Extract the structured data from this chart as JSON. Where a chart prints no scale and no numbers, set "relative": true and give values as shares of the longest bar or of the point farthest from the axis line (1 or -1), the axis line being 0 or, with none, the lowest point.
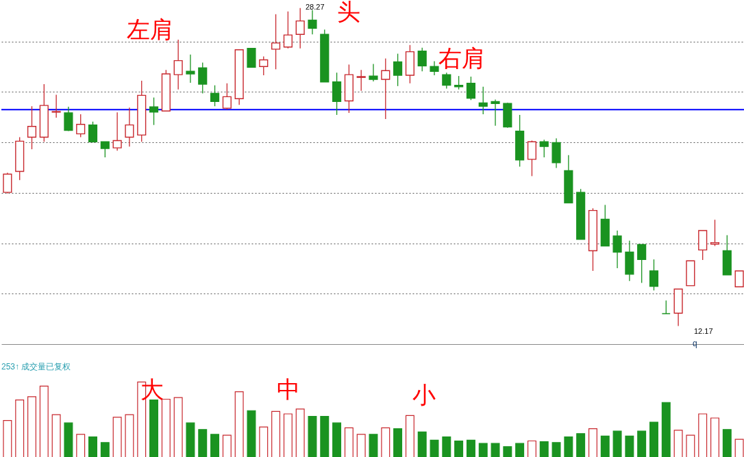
{
  "chart_data": [
    {
      "type": "candlestick",
      "categories": [
        null,
        null,
        null,
        null,
        null,
        null,
        null,
        null,
        null,
        null,
        null,
        null,
        null,
        null,
        null,
        null,
        null,
        null,
        null,
        null,
        null,
        null,
        null,
        null,
        null,
        null,
        null,
        null,
        null,
        null,
        null,
        null,
        null,
        null,
        null,
        null,
        null,
        null,
        null,
        null,
        null,
        null,
        null,
        null,
        null,
        null,
        null,
        null,
        null,
        null,
        null,
        null,
        null,
        null,
        null,
        null,
        null,
        null,
        null,
        null,
        null
      ],
      "ohlc": [
        [
          18.94,
          19.93,
          18.88,
          19.86
        ],
        [
          20.0,
          21.73,
          19.56,
          21.53
        ],
        [
          21.73,
          23.3,
          21.12,
          22.28
        ],
        [
          21.73,
          24.42,
          21.5,
          23.34
        ],
        [
          23.0,
          23.88,
          22.72,
          23.03
        ],
        [
          22.96,
          23.27,
          22.04,
          22.08
        ],
        [
          21.9,
          22.89,
          21.73,
          22.38
        ],
        [
          22.35,
          22.52,
          21.46,
          21.5
        ],
        [
          21.5,
          21.5,
          20.71,
          21.16
        ],
        [
          21.19,
          22.99,
          21.05,
          21.56
        ],
        [
          21.73,
          23.23,
          21.26,
          22.35
        ],
        [
          21.84,
          24.59,
          21.5,
          23.85
        ],
        [
          23.27,
          23.74,
          22.35,
          23.0
        ],
        [
          23.06,
          25.14,
          23.06,
          24.94
        ],
        [
          24.9,
          26.67,
          24.15,
          25.61
        ],
        [
          25.07,
          25.92,
          24.49,
          24.94
        ],
        [
          25.24,
          25.51,
          23.95,
          24.42
        ],
        [
          23.95,
          24.36,
          23.3,
          23.54
        ],
        [
          23.2,
          24.46,
          23.13,
          23.78
        ],
        [
          23.68,
          26.16,
          23.37,
          26.16
        ],
        [
          26.23,
          26.23,
          25.27,
          25.27
        ],
        [
          25.31,
          25.82,
          24.87,
          25.65
        ],
        [
          26.19,
          27.96,
          25.17,
          26.5
        ],
        [
          26.3,
          28.1,
          26.23,
          26.91
        ],
        [
          26.94,
          28.27,
          26.23,
          27.62
        ],
        [
          27.66,
          28.17,
          26.94,
          27.25
        ],
        [
          26.94,
          27.18,
          24.53,
          24.53
        ],
        [
          24.53,
          25.0,
          22.86,
          23.54
        ],
        [
          23.57,
          25.41,
          22.96,
          24.9
        ],
        [
          24.76,
          25.14,
          24.08,
          24.8
        ],
        [
          24.83,
          25.44,
          24.56,
          24.66
        ],
        [
          24.66,
          25.72,
          22.65,
          25.1
        ],
        [
          25.55,
          25.96,
          24.32,
          24.87
        ],
        [
          24.87,
          26.4,
          24.46,
          26.06
        ],
        [
          26.09,
          26.26,
          25.07,
          25.34
        ],
        [
          25.31,
          25.58,
          24.87,
          25.07
        ],
        [
          24.9,
          25.0,
          24.19,
          24.36
        ],
        [
          24.36,
          24.83,
          24.15,
          24.29
        ],
        [
          24.46,
          24.8,
          23.61,
          23.71
        ],
        [
          23.47,
          24.29,
          22.89,
          23.3
        ],
        [
          23.54,
          23.64,
          22.31,
          23.44
        ],
        [
          23.44,
          23.47,
          22.21,
          22.25
        ],
        [
          22.04,
          22.86,
          20.24,
          20.58
        ],
        [
          20.61,
          21.56,
          19.76,
          21.5
        ],
        [
          21.5,
          21.6,
          20.71,
          21.26
        ],
        [
          21.46,
          21.67,
          20.17,
          20.44
        ],
        [
          20.04,
          20.82,
          18.4,
          18.4
        ],
        [
          18.94,
          19.11,
          16.56,
          16.56
        ],
        [
          15.98,
          18.13,
          14.96,
          18.02
        ],
        [
          17.58,
          18.3,
          16.22,
          16.22
        ],
        [
          16.73,
          17.0,
          15.1,
          15.91
        ],
        [
          15.91,
          16.49,
          14.45,
          14.79
        ],
        [
          16.29,
          16.29,
          14.35,
          15.54
        ],
        [
          14.96,
          15.54,
          13.97,
          14.18
        ],
        [
          12.79,
          13.46,
          12.79,
          12.79
        ],
        [
          12.82,
          14.04,
          12.17,
          14.04
        ],
        [
          14.21,
          15.47,
          14.21,
          15.47
        ],
        [
          16.02,
          17.0,
          15.51,
          17.0
        ],
        [
          16.32,
          17.55,
          16.22,
          16.39
        ],
        [
          15.98,
          16.77,
          14.76,
          14.76
        ],
        [
          14.15,
          14.96,
          14.15,
          14.96
        ]
      ],
      "colors": [
        "#c8282e",
        "#c8282e",
        "#c8282e",
        "#c8282e",
        "#c8282e",
        "#1a9320",
        "#c8282e",
        "#1a9320",
        "#1a9320",
        "#c8282e",
        "#c8282e",
        "#c8282e",
        "#1a9320",
        "#c8282e",
        "#c8282e",
        "#1a9320",
        "#1a9320",
        "#1a9320",
        "#c8282e",
        "#c8282e",
        "#1a9320",
        "#c8282e",
        "#c8282e",
        "#c8282e",
        "#c8282e",
        "#1a9320",
        "#1a9320",
        "#1a9320",
        "#c8282e",
        "#c8282e",
        "#1a9320",
        "#c8282e",
        "#1a9320",
        "#c8282e",
        "#1a9320",
        "#1a9320",
        "#1a9320",
        "#1a9320",
        "#1a9320",
        "#1a9320",
        "#1a9320",
        "#1a9320",
        "#1a9320",
        "#c8282e",
        "#1a9320",
        "#1a9320",
        "#1a9320",
        "#1a9320",
        "#c8282e",
        "#1a9320",
        "#1a9320",
        "#1a9320",
        "#1a9320",
        "#1a9320",
        "#1a9320",
        "#c8282e",
        "#c8282e",
        "#c8282e",
        "#c8282e",
        "#1a9320",
        "#c8282e"
      ],
      "ylim": [
        11.25,
        28.68
      ],
      "yticks": [
        {
          "value": 13.81,
          "label": null
        },
        {
          "value": 16.36,
          "label": null
        },
        {
          "value": 18.91,
          "label": null
        },
        {
          "value": 21.46,
          "label": null
        },
        {
          "value": 24.02,
          "label": null
        },
        {
          "value": 26.57,
          "label": null
        }
      ],
      "grid": "y",
      "ref_lines": [
        {
          "axis": "y",
          "value": 23.13,
          "color": "#0000ff"
        }
      ],
      "annotations": [
        "左肩",
        "头",
        "右肩",
        "28.27",
        "12.17",
        "q"
      ]
    },
    {
      "type": "bar",
      "categories": [
        null,
        null,
        null,
        null,
        null,
        null,
        null,
        null,
        null,
        null,
        null,
        null,
        null,
        null,
        null,
        null,
        null,
        null,
        null,
        null,
        null,
        null,
        null,
        null,
        null,
        null,
        null,
        null,
        null,
        null,
        null,
        null,
        null,
        null,
        null,
        null,
        null,
        null,
        null,
        null,
        null,
        null,
        null,
        null,
        null,
        null,
        null,
        null,
        null,
        null,
        null,
        null,
        null,
        null,
        null,
        null,
        null,
        null,
        null,
        null,
        null
      ],
      "values": [
        0.53,
        0.78,
        0.82,
        0.95,
        0.6,
        0.5,
        0.36,
        0.33,
        0.26,
        0.57,
        0.6,
        1,
        0.78,
        0.79,
        0.81,
        0.5,
        0.42,
        0.36,
        0.35,
        0.88,
        0.65,
        0.45,
        0.64,
        0.61,
        0.67,
        0.58,
        0.58,
        0.5,
        0.44,
        0.36,
        0.36,
        0.44,
        0.43,
        0.59,
        0.39,
        0.29,
        0.33,
        0.28,
        0.29,
        0.25,
        0.25,
        0.21,
        0.25,
        0.28,
        0.27,
        0.26,
        0.33,
        0.37,
        0.43,
        0.34,
        0.4,
        0.34,
        0.4,
        0.51,
        0.75,
        0.41,
        0.35,
        0.61,
        0.56,
        0.42,
        0.3
      ],
      "colors": [
        "#c8282e",
        "#c8282e",
        "#c8282e",
        "#c8282e",
        "#c8282e",
        "#1a9320",
        "#c8282e",
        "#1a9320",
        "#1a9320",
        "#c8282e",
        "#c8282e",
        "#c8282e",
        "#1a9320",
        "#c8282e",
        "#c8282e",
        "#1a9320",
        "#1a9320",
        "#1a9320",
        "#c8282e",
        "#c8282e",
        "#1a9320",
        "#c8282e",
        "#c8282e",
        "#c8282e",
        "#c8282e",
        "#1a9320",
        "#1a9320",
        "#1a9320",
        "#c8282e",
        "#c8282e",
        "#1a9320",
        "#c8282e",
        "#1a9320",
        "#c8282e",
        "#1a9320",
        "#1a9320",
        "#1a9320",
        "#1a9320",
        "#1a9320",
        "#1a9320",
        "#1a9320",
        "#1a9320",
        "#1a9320",
        "#c8282e",
        "#1a9320",
        "#1a9320",
        "#1a9320",
        "#1a9320",
        "#c8282e",
        "#1a9320",
        "#1a9320",
        "#1a9320",
        "#1a9320",
        "#1a9320",
        "#1a9320",
        "#c8282e",
        "#c8282e",
        "#c8282e",
        "#c8282e",
        "#1a9320",
        "#c8282e"
      ],
      "relative": true,
      "annotations": [
        "253↑ 成交量已复权",
        "大",
        "中",
        "小"
      ]
    }
  ]
}
